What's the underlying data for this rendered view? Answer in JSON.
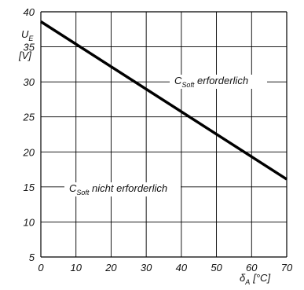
{
  "chart_data": {
    "type": "line",
    "x": [
      0,
      70
    ],
    "series": [
      {
        "values": [
          38.6,
          16.1
        ]
      }
    ],
    "xlim": [
      0,
      70
    ],
    "ylim": [
      5,
      40
    ],
    "x_ticks": [
      "0",
      "10",
      "20",
      "30",
      "40",
      "50",
      "60",
      "70"
    ],
    "y_ticks": [
      "5",
      "10",
      "15",
      "20",
      "25",
      "30",
      "35",
      "40"
    ],
    "xlabel": {
      "symbol": "δ",
      "sub": "A",
      "unit": "[°C]"
    },
    "ylabel": {
      "symbol": "U",
      "sub": "E",
      "unit": "[V]"
    },
    "grid": true,
    "annotations": {
      "above": {
        "c": "C",
        "sub": "Soft",
        "text": " erforderlich"
      },
      "below": {
        "c": "C",
        "sub": "Soft",
        "text": " nicht erforderlich"
      }
    }
  }
}
